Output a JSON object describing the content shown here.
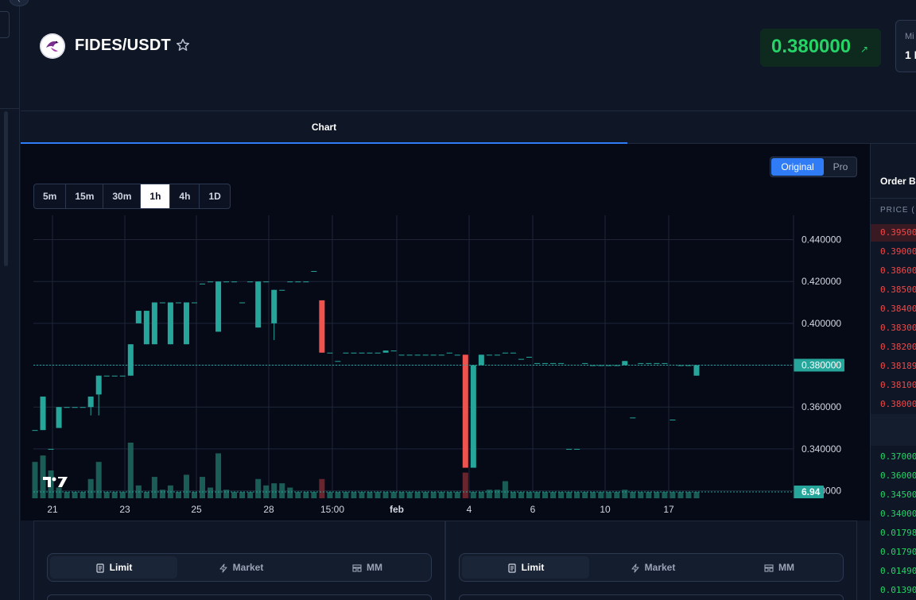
{
  "header": {
    "pair": "FIDES/USDT",
    "price": "0.380000",
    "stat_label": "Mi",
    "stat_value": "1 I"
  },
  "tabs": {
    "chart": "Chart"
  },
  "chart_toggle": {
    "original": "Original",
    "pro": "Pro"
  },
  "intervals": [
    "5m",
    "15m",
    "30m",
    "1h",
    "4h",
    "1D"
  ],
  "active_interval": "1h",
  "chart_data": {
    "type": "candlestick",
    "y_ticks": [
      "0.440000",
      "0.420000",
      "0.400000",
      "0.380000",
      "0.360000",
      "0.340000",
      "0.320000"
    ],
    "y_range": [
      0.3164,
      0.4516
    ],
    "x_ticks": [
      "21",
      "23",
      "25",
      "28",
      "15:00",
      "feb",
      "4",
      "6",
      "10",
      "17"
    ],
    "last_price_label": "0.380000",
    "last_volume_label": "6.94",
    "up_color": "#26a69a",
    "down_color": "#ef5350",
    "candles": [
      {
        "o": 0.349,
        "h": 0.349,
        "l": 0.349,
        "c": 0.349
      },
      {
        "o": 0.349,
        "h": 0.365,
        "l": 0.349,
        "c": 0.365
      },
      {
        "o": 0.34,
        "h": 0.34,
        "l": 0.34,
        "c": 0.34
      },
      {
        "o": 0.35,
        "h": 0.36,
        "l": 0.35,
        "c": 0.36
      },
      {
        "o": 0.36,
        "h": 0.36,
        "l": 0.36,
        "c": 0.36
      },
      {
        "o": 0.36,
        "h": 0.36,
        "l": 0.36,
        "c": 0.36
      },
      {
        "o": 0.36,
        "h": 0.36,
        "l": 0.36,
        "c": 0.36
      },
      {
        "o": 0.36,
        "h": 0.365,
        "l": 0.356,
        "c": 0.365
      },
      {
        "o": 0.366,
        "h": 0.375,
        "l": 0.356,
        "c": 0.375
      },
      {
        "o": 0.375,
        "h": 0.375,
        "l": 0.375,
        "c": 0.375
      },
      {
        "o": 0.375,
        "h": 0.375,
        "l": 0.375,
        "c": 0.375
      },
      {
        "o": 0.375,
        "h": 0.375,
        "l": 0.375,
        "c": 0.375
      },
      {
        "o": 0.375,
        "h": 0.39,
        "l": 0.375,
        "c": 0.39
      },
      {
        "o": 0.4,
        "h": 0.406,
        "l": 0.4,
        "c": 0.406
      },
      {
        "o": 0.39,
        "h": 0.406,
        "l": 0.39,
        "c": 0.406
      },
      {
        "o": 0.39,
        "h": 0.41,
        "l": 0.39,
        "c": 0.41
      },
      {
        "o": 0.41,
        "h": 0.41,
        "l": 0.41,
        "c": 0.41
      },
      {
        "o": 0.39,
        "h": 0.41,
        "l": 0.39,
        "c": 0.41
      },
      {
        "o": 0.41,
        "h": 0.41,
        "l": 0.41,
        "c": 0.41
      },
      {
        "o": 0.39,
        "h": 0.41,
        "l": 0.39,
        "c": 0.41
      },
      {
        "o": 0.41,
        "h": 0.41,
        "l": 0.41,
        "c": 0.41
      },
      {
        "o": 0.419,
        "h": 0.419,
        "l": 0.419,
        "c": 0.419
      },
      {
        "o": 0.42,
        "h": 0.42,
        "l": 0.42,
        "c": 0.42
      },
      {
        "o": 0.396,
        "h": 0.42,
        "l": 0.396,
        "c": 0.42
      },
      {
        "o": 0.42,
        "h": 0.42,
        "l": 0.42,
        "c": 0.42
      },
      {
        "o": 0.42,
        "h": 0.42,
        "l": 0.42,
        "c": 0.42
      },
      {
        "o": 0.41,
        "h": 0.41,
        "l": 0.41,
        "c": 0.41
      },
      {
        "o": 0.42,
        "h": 0.42,
        "l": 0.42,
        "c": 0.42
      },
      {
        "o": 0.398,
        "h": 0.42,
        "l": 0.398,
        "c": 0.42
      },
      {
        "o": 0.42,
        "h": 0.42,
        "l": 0.42,
        "c": 0.42
      },
      {
        "o": 0.4,
        "h": 0.416,
        "l": 0.392,
        "c": 0.416
      },
      {
        "o": 0.416,
        "h": 0.416,
        "l": 0.416,
        "c": 0.416
      },
      {
        "o": 0.42,
        "h": 0.42,
        "l": 0.42,
        "c": 0.42
      },
      {
        "o": 0.42,
        "h": 0.42,
        "l": 0.42,
        "c": 0.42
      },
      {
        "o": 0.42,
        "h": 0.42,
        "l": 0.42,
        "c": 0.42
      },
      {
        "o": 0.425,
        "h": 0.425,
        "l": 0.425,
        "c": 0.425
      },
      {
        "o": 0.411,
        "h": 0.411,
        "l": 0.386,
        "c": 0.386
      },
      {
        "o": 0.386,
        "h": 0.386,
        "l": 0.386,
        "c": 0.386
      },
      {
        "o": 0.382,
        "h": 0.382,
        "l": 0.382,
        "c": 0.382
      },
      {
        "o": 0.386,
        "h": 0.386,
        "l": 0.386,
        "c": 0.386
      },
      {
        "o": 0.386,
        "h": 0.386,
        "l": 0.386,
        "c": 0.386
      },
      {
        "o": 0.386,
        "h": 0.386,
        "l": 0.386,
        "c": 0.386
      },
      {
        "o": 0.386,
        "h": 0.386,
        "l": 0.386,
        "c": 0.386
      },
      {
        "o": 0.386,
        "h": 0.386,
        "l": 0.386,
        "c": 0.386
      },
      {
        "o": 0.386,
        "h": 0.387,
        "l": 0.386,
        "c": 0.387
      },
      {
        "o": 0.387,
        "h": 0.387,
        "l": 0.387,
        "c": 0.387
      },
      {
        "o": 0.385,
        "h": 0.385,
        "l": 0.385,
        "c": 0.385
      },
      {
        "o": 0.385,
        "h": 0.385,
        "l": 0.385,
        "c": 0.385
      },
      {
        "o": 0.385,
        "h": 0.385,
        "l": 0.385,
        "c": 0.385
      },
      {
        "o": 0.385,
        "h": 0.385,
        "l": 0.385,
        "c": 0.385
      },
      {
        "o": 0.385,
        "h": 0.385,
        "l": 0.385,
        "c": 0.385
      },
      {
        "o": 0.385,
        "h": 0.385,
        "l": 0.385,
        "c": 0.385
      },
      {
        "o": 0.386,
        "h": 0.386,
        "l": 0.386,
        "c": 0.386
      },
      {
        "o": 0.385,
        "h": 0.385,
        "l": 0.385,
        "c": 0.385
      },
      {
        "o": 0.385,
        "h": 0.385,
        "l": 0.331,
        "c": 0.331
      },
      {
        "o": 0.331,
        "h": 0.38,
        "l": 0.331,
        "c": 0.38
      },
      {
        "o": 0.38,
        "h": 0.385,
        "l": 0.38,
        "c": 0.385
      },
      {
        "o": 0.385,
        "h": 0.385,
        "l": 0.385,
        "c": 0.385
      },
      {
        "o": 0.385,
        "h": 0.385,
        "l": 0.385,
        "c": 0.385
      },
      {
        "o": 0.386,
        "h": 0.386,
        "l": 0.386,
        "c": 0.386
      },
      {
        "o": 0.386,
        "h": 0.386,
        "l": 0.386,
        "c": 0.386
      },
      {
        "o": 0.383,
        "h": 0.383,
        "l": 0.383,
        "c": 0.383
      },
      {
        "o": 0.384,
        "h": 0.384,
        "l": 0.384,
        "c": 0.384
      },
      {
        "o": 0.381,
        "h": 0.381,
        "l": 0.381,
        "c": 0.381
      },
      {
        "o": 0.381,
        "h": 0.381,
        "l": 0.381,
        "c": 0.381
      },
      {
        "o": 0.381,
        "h": 0.381,
        "l": 0.381,
        "c": 0.381
      },
      {
        "o": 0.381,
        "h": 0.381,
        "l": 0.381,
        "c": 0.381
      },
      {
        "o": 0.34,
        "h": 0.34,
        "l": 0.34,
        "c": 0.34
      },
      {
        "o": 0.34,
        "h": 0.34,
        "l": 0.34,
        "c": 0.34
      },
      {
        "o": 0.381,
        "h": 0.381,
        "l": 0.381,
        "c": 0.381
      },
      {
        "o": 0.38,
        "h": 0.38,
        "l": 0.38,
        "c": 0.38
      },
      {
        "o": 0.38,
        "h": 0.38,
        "l": 0.38,
        "c": 0.38
      },
      {
        "o": 0.38,
        "h": 0.38,
        "l": 0.38,
        "c": 0.38
      },
      {
        "o": 0.38,
        "h": 0.38,
        "l": 0.38,
        "c": 0.38
      },
      {
        "o": 0.38,
        "h": 0.382,
        "l": 0.38,
        "c": 0.382
      },
      {
        "o": 0.355,
        "h": 0.355,
        "l": 0.355,
        "c": 0.355
      },
      {
        "o": 0.381,
        "h": 0.381,
        "l": 0.381,
        "c": 0.381
      },
      {
        "o": 0.381,
        "h": 0.381,
        "l": 0.381,
        "c": 0.381
      },
      {
        "o": 0.381,
        "h": 0.381,
        "l": 0.381,
        "c": 0.381
      },
      {
        "o": 0.381,
        "h": 0.381,
        "l": 0.381,
        "c": 0.381
      },
      {
        "o": 0.354,
        "h": 0.354,
        "l": 0.354,
        "c": 0.354
      },
      {
        "o": 0.38,
        "h": 0.38,
        "l": 0.38,
        "c": 0.38
      },
      {
        "o": 0.38,
        "h": 0.38,
        "l": 0.38,
        "c": 0.38
      },
      {
        "o": 0.375,
        "h": 0.38,
        "l": 0.375,
        "c": 0.38
      }
    ],
    "volumes": [
      1.7,
      2.0,
      1.3,
      0.5,
      0.3,
      0.3,
      0.3,
      0.9,
      1.7,
      0.3,
      0.3,
      0.3,
      2.6,
      0.6,
      0.3,
      1.0,
      0.4,
      0.6,
      0.3,
      1.1,
      0.3,
      1.0,
      0.5,
      2.1,
      0.4,
      0.3,
      0.3,
      0.3,
      0.9,
      0.6,
      0.7,
      0.7,
      0.5,
      0.3,
      0.3,
      0.3,
      0.9,
      0.3,
      0.3,
      0.3,
      0.3,
      0.3,
      0.3,
      0.3,
      0.3,
      0.3,
      0.3,
      0.3,
      0.3,
      0.3,
      0.3,
      0.3,
      0.3,
      0.3,
      1.2,
      0.3,
      0.3,
      0.4,
      0.4,
      0.8,
      0.3,
      0.3,
      0.3,
      0.3,
      0.3,
      0.3,
      0.3,
      0.3,
      0.3,
      0.3,
      0.3,
      0.3,
      0.3,
      0.3,
      0.4,
      0.3,
      0.3,
      0.3,
      0.3,
      0.3,
      0.3,
      0.3,
      0.3,
      0.3
    ]
  },
  "order_book": {
    "title": "Order Bo",
    "price_col": "PRICE (",
    "asks": [
      "0.39500",
      "0.39000",
      "0.38600",
      "0.38500",
      "0.38400",
      "0.38300",
      "0.38200",
      "0.38189",
      "0.38100",
      "0.38000"
    ],
    "bids": [
      "0.37000",
      "0.36000",
      "0.34500",
      "0.34000",
      "0.01798",
      "0.01790",
      "0.01490",
      "0.01390"
    ]
  },
  "order_forms": [
    {
      "tabs": [
        "Limit",
        "Market",
        "MM"
      ],
      "active": "Limit"
    },
    {
      "tabs": [
        "Limit",
        "Market",
        "MM"
      ],
      "active": "Limit"
    }
  ],
  "tradingview_mark": "TV"
}
